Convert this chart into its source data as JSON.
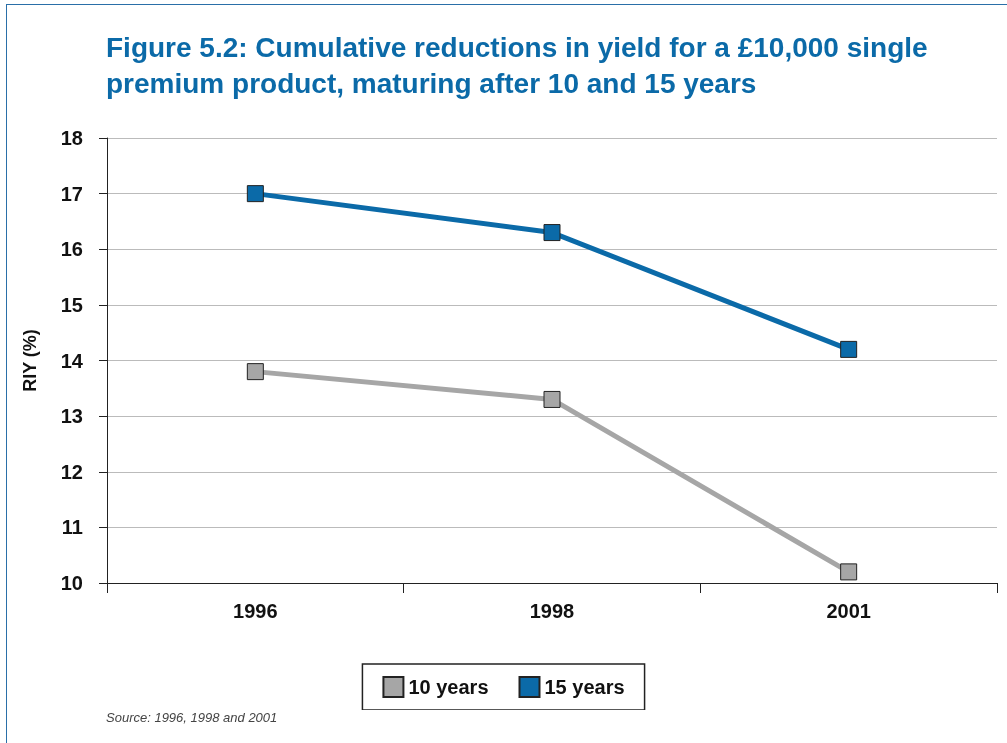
{
  "chart_data": {
    "type": "line",
    "title": "Figure 5.2: Cumulative reductions in yield for a £10,000 single premium product, maturing after 10 and 15 years",
    "ylabel": "RIY (%)",
    "categories": [
      "1996",
      "1998",
      "2001"
    ],
    "series": [
      {
        "name": "10 years",
        "color": "#a6a6a6",
        "values": [
          13.8,
          13.3,
          10.2
        ]
      },
      {
        "name": "15 years",
        "color": "#0b6aa8",
        "values": [
          17.0,
          16.3,
          14.2
        ]
      }
    ],
    "ylim": [
      10,
      18
    ],
    "yticks": [
      10,
      11,
      12,
      13,
      14,
      15,
      16,
      17,
      18
    ],
    "grid": "y",
    "legend": "bottom",
    "marker": "square",
    "line_style": "solid",
    "annotations": [
      "Source: 1996, 1998 and 2001"
    ]
  }
}
